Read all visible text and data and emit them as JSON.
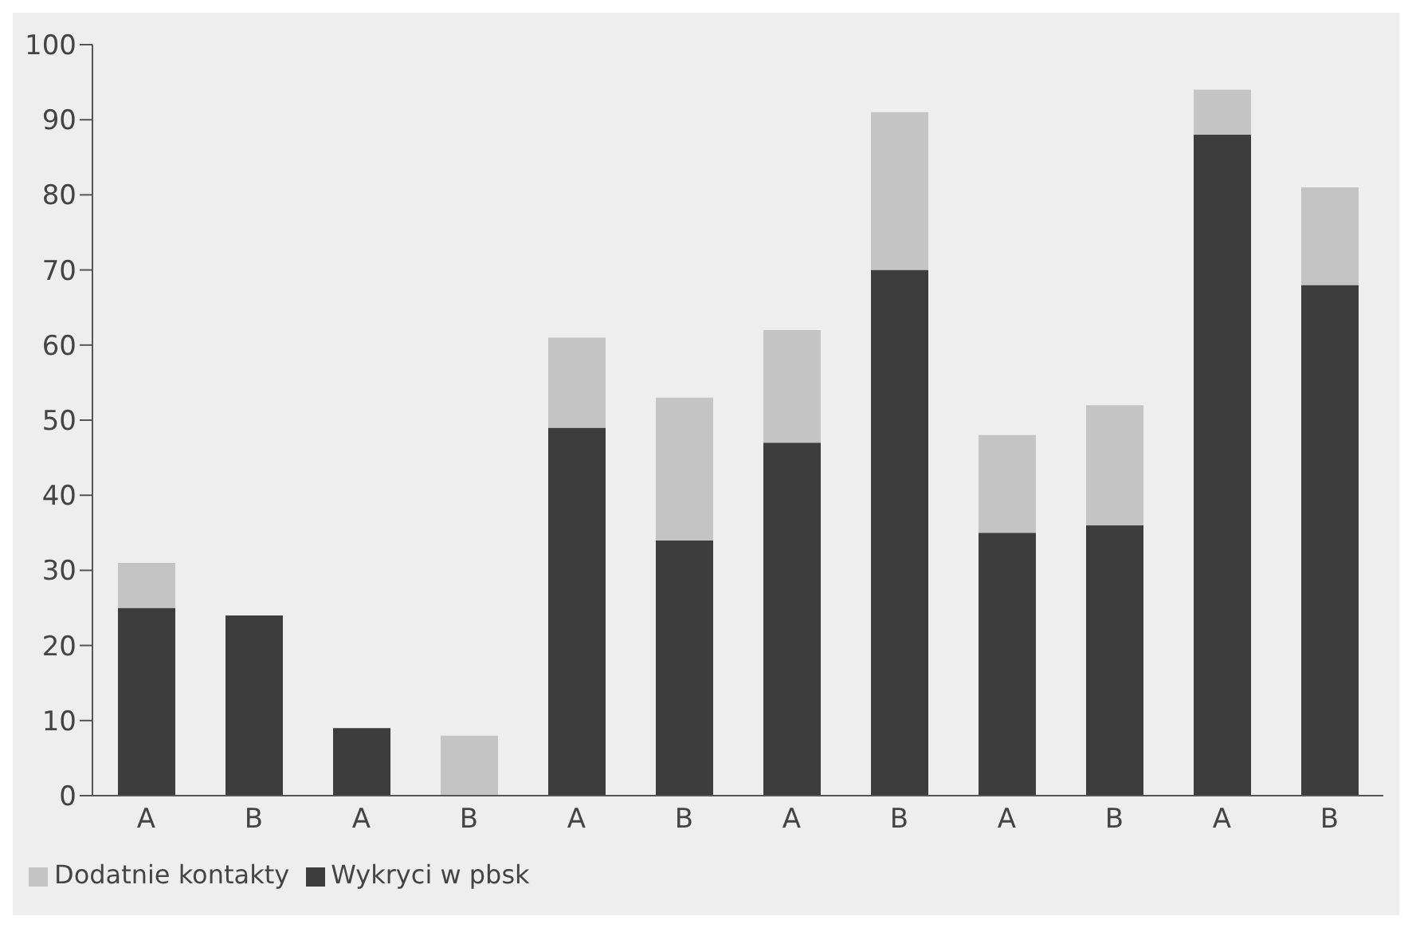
{
  "chart_data": {
    "type": "bar",
    "stacked": true,
    "categories": [
      "A",
      "B",
      "A",
      "B",
      "A",
      "B",
      "A",
      "B",
      "A",
      "B",
      "A",
      "B"
    ],
    "series": [
      {
        "name": "Wykryci w pbsk",
        "color": "#3d3d3d",
        "values": [
          25,
          24,
          9,
          0,
          49,
          34,
          47,
          70,
          35,
          36,
          88,
          68
        ]
      },
      {
        "name": "Dodatnie kontakty",
        "color": "#c4c4c4",
        "values": [
          6,
          0,
          0,
          8,
          12,
          19,
          15,
          21,
          13,
          16,
          6,
          13
        ]
      }
    ],
    "ylim": [
      0,
      100
    ],
    "yticks": [
      0,
      10,
      20,
      30,
      40,
      50,
      60,
      70,
      80,
      90,
      100
    ],
    "grid": false,
    "legend": "bottom left"
  }
}
